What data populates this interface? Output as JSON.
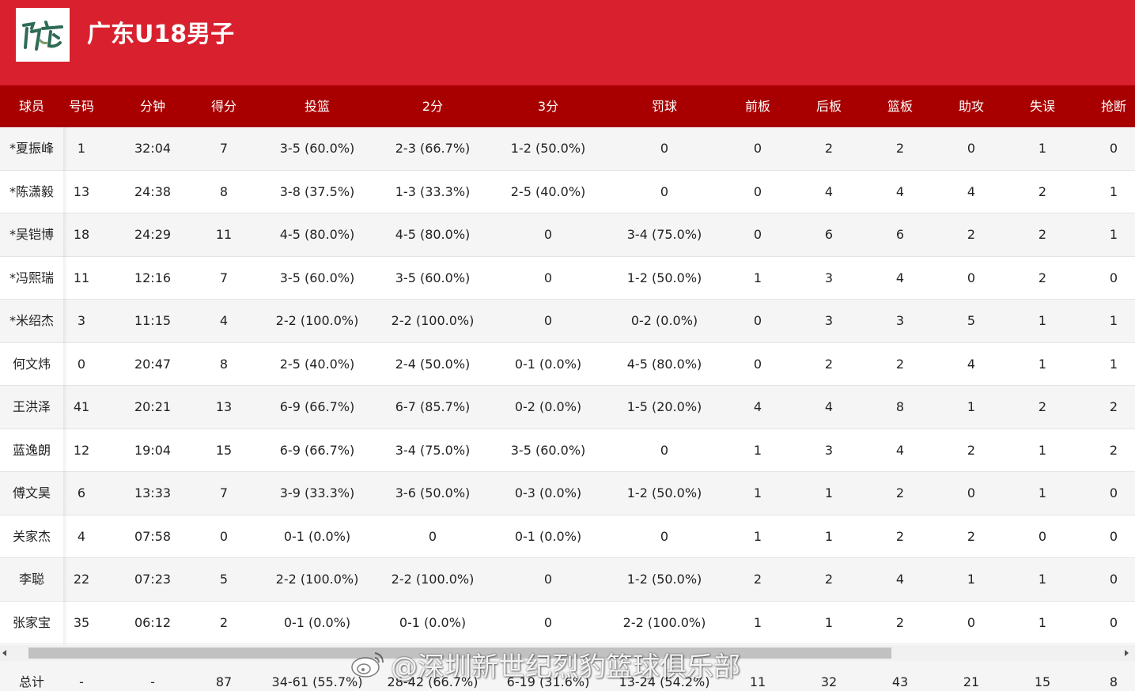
{
  "team": {
    "name": "广东U18男子",
    "logo_text": "广东"
  },
  "colors": {
    "header_bg": "#d9202e",
    "table_header_bg": "#a80000",
    "row_alt_bg": "#f5f5f5"
  },
  "columns": [
    "球员",
    "号码",
    "分钟",
    "得分",
    "投篮",
    "2分",
    "3分",
    "罚球",
    "前板",
    "后板",
    "篮板",
    "助攻",
    "失误",
    "抢断"
  ],
  "players": [
    {
      "name": "*夏振峰",
      "number": "1",
      "minutes": "32:04",
      "points": "7",
      "fg": "3-5 (60.0%)",
      "two": "2-3 (66.7%)",
      "three": "1-2 (50.0%)",
      "ft": "0",
      "oreb": "0",
      "dreb": "2",
      "reb": "2",
      "ast": "0",
      "tov": "1",
      "stl": "0"
    },
    {
      "name": "*陈潇毅",
      "number": "13",
      "minutes": "24:38",
      "points": "8",
      "fg": "3-8 (37.5%)",
      "two": "1-3 (33.3%)",
      "three": "2-5 (40.0%)",
      "ft": "0",
      "oreb": "0",
      "dreb": "4",
      "reb": "4",
      "ast": "4",
      "tov": "2",
      "stl": "1"
    },
    {
      "name": "*吴铠博",
      "number": "18",
      "minutes": "24:29",
      "points": "11",
      "fg": "4-5 (80.0%)",
      "two": "4-5 (80.0%)",
      "three": "0",
      "ft": "3-4 (75.0%)",
      "oreb": "0",
      "dreb": "6",
      "reb": "6",
      "ast": "2",
      "tov": "2",
      "stl": "1"
    },
    {
      "name": "*冯熙瑞",
      "number": "11",
      "minutes": "12:16",
      "points": "7",
      "fg": "3-5 (60.0%)",
      "two": "3-5 (60.0%)",
      "three": "0",
      "ft": "1-2 (50.0%)",
      "oreb": "1",
      "dreb": "3",
      "reb": "4",
      "ast": "0",
      "tov": "2",
      "stl": "0"
    },
    {
      "name": "*米绍杰",
      "number": "3",
      "minutes": "11:15",
      "points": "4",
      "fg": "2-2 (100.0%)",
      "two": "2-2 (100.0%)",
      "three": "0",
      "ft": "0-2 (0.0%)",
      "oreb": "0",
      "dreb": "3",
      "reb": "3",
      "ast": "5",
      "tov": "1",
      "stl": "1"
    },
    {
      "name": "何文炜",
      "number": "0",
      "minutes": "20:47",
      "points": "8",
      "fg": "2-5 (40.0%)",
      "two": "2-4 (50.0%)",
      "three": "0-1 (0.0%)",
      "ft": "4-5 (80.0%)",
      "oreb": "0",
      "dreb": "2",
      "reb": "2",
      "ast": "4",
      "tov": "1",
      "stl": "1"
    },
    {
      "name": "王洪泽",
      "number": "41",
      "minutes": "20:21",
      "points": "13",
      "fg": "6-9 (66.7%)",
      "two": "6-7 (85.7%)",
      "three": "0-2 (0.0%)",
      "ft": "1-5 (20.0%)",
      "oreb": "4",
      "dreb": "4",
      "reb": "8",
      "ast": "1",
      "tov": "2",
      "stl": "2"
    },
    {
      "name": "蓝逸朗",
      "number": "12",
      "minutes": "19:04",
      "points": "15",
      "fg": "6-9 (66.7%)",
      "two": "3-4 (75.0%)",
      "three": "3-5 (60.0%)",
      "ft": "0",
      "oreb": "1",
      "dreb": "3",
      "reb": "4",
      "ast": "2",
      "tov": "1",
      "stl": "2"
    },
    {
      "name": "傅文昊",
      "number": "6",
      "minutes": "13:33",
      "points": "7",
      "fg": "3-9 (33.3%)",
      "two": "3-6 (50.0%)",
      "three": "0-3 (0.0%)",
      "ft": "1-2 (50.0%)",
      "oreb": "1",
      "dreb": "1",
      "reb": "2",
      "ast": "0",
      "tov": "1",
      "stl": "0"
    },
    {
      "name": "关家杰",
      "number": "4",
      "minutes": "07:58",
      "points": "0",
      "fg": "0-1 (0.0%)",
      "two": "0",
      "three": "0-1 (0.0%)",
      "ft": "0",
      "oreb": "1",
      "dreb": "1",
      "reb": "2",
      "ast": "2",
      "tov": "0",
      "stl": "0"
    },
    {
      "name": "李聪",
      "number": "22",
      "minutes": "07:23",
      "points": "5",
      "fg": "2-2 (100.0%)",
      "two": "2-2 (100.0%)",
      "three": "0",
      "ft": "1-2 (50.0%)",
      "oreb": "2",
      "dreb": "2",
      "reb": "4",
      "ast": "1",
      "tov": "1",
      "stl": "0"
    },
    {
      "name": "张家宝",
      "number": "35",
      "minutes": "06:12",
      "points": "2",
      "fg": "0-1 (0.0%)",
      "two": "0-1 (0.0%)",
      "three": "0",
      "ft": "2-2 (100.0%)",
      "oreb": "1",
      "dreb": "1",
      "reb": "2",
      "ast": "0",
      "tov": "1",
      "stl": "0"
    }
  ],
  "totals": {
    "name": "总计",
    "number": "-",
    "minutes": "-",
    "points": "87",
    "fg": "34-61 (55.7%)",
    "two": "28-42 (66.7%)",
    "three": "6-19 (31.6%)",
    "ft": "13-24 (54.2%)",
    "oreb": "11",
    "dreb": "32",
    "reb": "43",
    "ast": "21",
    "tov": "15",
    "stl": "8"
  },
  "watermark": "@深圳新世纪烈豹篮球俱乐部"
}
